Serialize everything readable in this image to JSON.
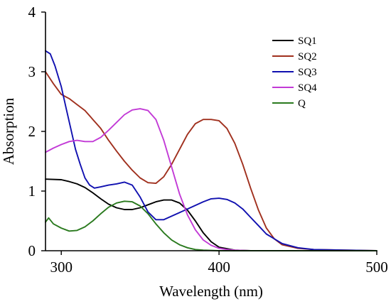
{
  "chart_data": {
    "type": "line",
    "title": "",
    "xlabel": "Wavelength (nm)",
    "ylabel": "Absorption",
    "xlim": [
      290,
      500
    ],
    "ylim": [
      0,
      4
    ],
    "xticks": [
      300,
      400,
      500
    ],
    "yticks": [
      0,
      1,
      2,
      3,
      4
    ],
    "grid": false,
    "legend": "top-right",
    "series": [
      {
        "name": "SQ1",
        "color": "#000000",
        "x": [
          290,
          300,
          305,
          310,
          315,
          320,
          325,
          330,
          335,
          340,
          345,
          350,
          355,
          360,
          365,
          370,
          375,
          380,
          385,
          390,
          395,
          400,
          410,
          420,
          440,
          460,
          500
        ],
        "y": [
          1.2,
          1.19,
          1.16,
          1.12,
          1.06,
          0.97,
          0.87,
          0.78,
          0.72,
          0.69,
          0.69,
          0.72,
          0.77,
          0.82,
          0.85,
          0.85,
          0.8,
          0.68,
          0.5,
          0.3,
          0.15,
          0.06,
          0.01,
          0.0,
          0.0,
          0.0,
          0.0
        ]
      },
      {
        "name": "SQ2",
        "color": "#a0301e",
        "x": [
          290,
          295,
          300,
          305,
          310,
          315,
          320,
          325,
          330,
          335,
          340,
          345,
          350,
          355,
          360,
          365,
          370,
          375,
          380,
          385,
          390,
          395,
          400,
          405,
          410,
          415,
          420,
          425,
          430,
          435,
          440,
          450,
          460,
          480,
          500
        ],
        "y": [
          3.0,
          2.8,
          2.62,
          2.55,
          2.45,
          2.35,
          2.2,
          2.05,
          1.85,
          1.67,
          1.5,
          1.35,
          1.22,
          1.14,
          1.13,
          1.24,
          1.45,
          1.7,
          1.95,
          2.13,
          2.2,
          2.2,
          2.18,
          2.05,
          1.8,
          1.45,
          1.05,
          0.68,
          0.38,
          0.2,
          0.1,
          0.04,
          0.02,
          0.01,
          0.0
        ]
      },
      {
        "name": "SQ3",
        "color": "#1010b0",
        "x": [
          290,
          293,
          296,
          300,
          303,
          306,
          309,
          312,
          315,
          318,
          321,
          325,
          330,
          335,
          340,
          345,
          350,
          355,
          360,
          365,
          370,
          380,
          390,
          395,
          400,
          405,
          410,
          415,
          420,
          425,
          430,
          440,
          450,
          460,
          480,
          500
        ],
        "y": [
          3.35,
          3.3,
          3.1,
          2.75,
          2.4,
          2.05,
          1.7,
          1.45,
          1.22,
          1.1,
          1.05,
          1.07,
          1.1,
          1.12,
          1.15,
          1.1,
          0.9,
          0.65,
          0.52,
          0.52,
          0.58,
          0.7,
          0.82,
          0.87,
          0.88,
          0.86,
          0.8,
          0.7,
          0.56,
          0.42,
          0.28,
          0.12,
          0.05,
          0.02,
          0.01,
          0.0
        ]
      },
      {
        "name": "SQ4",
        "color": "#c23ad6",
        "x": [
          290,
          295,
          300,
          305,
          310,
          315,
          320,
          325,
          330,
          335,
          340,
          345,
          350,
          355,
          360,
          365,
          370,
          375,
          380,
          385,
          390,
          395,
          400,
          405,
          410,
          420,
          440,
          500
        ],
        "y": [
          1.65,
          1.72,
          1.78,
          1.83,
          1.85,
          1.83,
          1.83,
          1.9,
          2.02,
          2.15,
          2.28,
          2.36,
          2.38,
          2.35,
          2.2,
          1.85,
          1.4,
          0.95,
          0.6,
          0.35,
          0.18,
          0.09,
          0.04,
          0.02,
          0.01,
          0.0,
          0.0,
          0.0
        ]
      },
      {
        "name": "Q",
        "color": "#2a7a1e",
        "x": [
          290,
          292,
          295,
          300,
          305,
          310,
          315,
          320,
          325,
          330,
          335,
          340,
          345,
          350,
          355,
          360,
          365,
          370,
          375,
          380,
          385,
          390,
          400,
          420,
          440,
          500
        ],
        "y": [
          0.48,
          0.55,
          0.45,
          0.38,
          0.33,
          0.34,
          0.4,
          0.5,
          0.62,
          0.73,
          0.8,
          0.83,
          0.82,
          0.75,
          0.62,
          0.45,
          0.3,
          0.18,
          0.1,
          0.05,
          0.02,
          0.01,
          0.0,
          0.0,
          0.0,
          0.0
        ]
      }
    ]
  }
}
